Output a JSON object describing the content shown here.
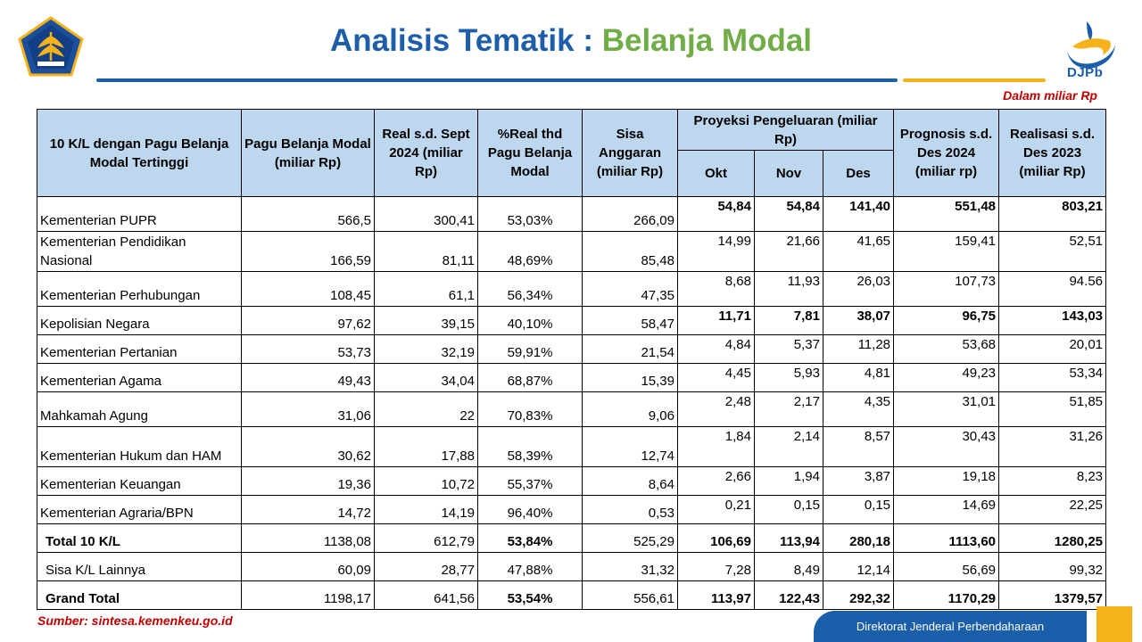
{
  "header": {
    "title_part1": "Analisis Tematik : ",
    "title_part2": "Belanja Modal",
    "logo_right_text": "DJPb",
    "unit_note": "Dalam miliar Rp"
  },
  "table": {
    "headers": {
      "kl": "10 K/L dengan Pagu Belanja Modal Tertinggi",
      "pagu": "Pagu Belanja Modal (miliar Rp)",
      "real": "Real s.d. Sept 2024 (miliar Rp)",
      "pct": "%Real thd Pagu Belanja Modal",
      "sisa": "Sisa Anggaran (miliar Rp)",
      "proyeksi": "Proyeksi Pengeluaran (miliar Rp)",
      "okt": "Okt",
      "nov": "Nov",
      "des": "Des",
      "prognosis": "Prognosis s.d. Des 2024 (miliar rp)",
      "realisasi": "Realisasi s.d. Des 2023 (miliar Rp)"
    },
    "rows": [
      {
        "name": "Kementerian PUPR",
        "pagu": "566,5",
        "real": "300,41",
        "pct": "53,03%",
        "sisa": "266,09",
        "okt": "54,84",
        "nov": "54,84",
        "des": "141,40",
        "prognosis": "551,48",
        "realisasi": "803,21"
      },
      {
        "name": "Kementerian Pendidikan Nasional",
        "pagu": "166,59",
        "real": "81,11",
        "pct": "48,69%",
        "sisa": "85,48",
        "okt": "14,99",
        "nov": "21,66",
        "des": "41,65",
        "prognosis": "159,41",
        "realisasi": "52,51"
      },
      {
        "name": "Kementerian Perhubungan",
        "pagu": "108,45",
        "real": "61,1",
        "pct": "56,34%",
        "sisa": "47,35",
        "okt": "8,68",
        "nov": "11,93",
        "des": "26,03",
        "prognosis": "107,73",
        "realisasi": "94.56"
      },
      {
        "name": "Kepolisian Negara",
        "pagu": "97,62",
        "real": "39,15",
        "pct": "40,10%",
        "sisa": "58,47",
        "okt": "11,71",
        "nov": "7,81",
        "des": "38,07",
        "prognosis": "96,75",
        "realisasi": "143,03"
      },
      {
        "name": "Kementerian Pertanian",
        "pagu": "53,73",
        "real": "32,19",
        "pct": "59,91%",
        "sisa": "21,54",
        "okt": "4,84",
        "nov": "5,37",
        "des": "11,28",
        "prognosis": "53,68",
        "realisasi": "20,01"
      },
      {
        "name": "Kementerian Agama",
        "pagu": "49,43",
        "real": "34,04",
        "pct": "68,87%",
        "sisa": "15,39",
        "okt": "4,45",
        "nov": "5,93",
        "des": "4,81",
        "prognosis": "49,23",
        "realisasi": "53,34"
      },
      {
        "name": "Mahkamah Agung",
        "pagu": "31,06",
        "real": "22",
        "pct": "70,83%",
        "sisa": "9,06",
        "okt": "2,48",
        "nov": "2,17",
        "des": "4,35",
        "prognosis": "31,01",
        "realisasi": "51,85"
      },
      {
        "name": "Kementerian Hukum dan HAM",
        "pagu": "30,62",
        "real": "17,88",
        "pct": "58,39%",
        "sisa": "12,74",
        "okt": "1,84",
        "nov": "2,14",
        "des": "8,57",
        "prognosis": "30,43",
        "realisasi": "31,26"
      },
      {
        "name": "Kementerian Keuangan",
        "pagu": "19,36",
        "real": "10,72",
        "pct": "55,37%",
        "sisa": "8,64",
        "okt": "2,66",
        "nov": "1,94",
        "des": "3,87",
        "prognosis": "19,18",
        "realisasi": "8,23"
      },
      {
        "name": "Kementerian Agraria/BPN",
        "pagu": "14,72",
        "real": "14,19",
        "pct": "96,40%",
        "sisa": "0,53",
        "okt": "0,21",
        "nov": "0,15",
        "des": "0,15",
        "prognosis": "14,69",
        "realisasi": "22,25"
      },
      {
        "name": "Total 10 K/L",
        "pagu": "1138,08",
        "real": "612,79",
        "pct": "53,84%",
        "sisa": "525,29",
        "okt": "106,69",
        "nov": "113,94",
        "des": "280,18",
        "prognosis": "1113,60",
        "realisasi": "1280,25"
      },
      {
        "name": "Sisa K/L Lainnya",
        "pagu": "60,09",
        "real": "28,77",
        "pct": "47,88%",
        "sisa": "31,32",
        "okt": "7,28",
        "nov": "8,49",
        "des": "12,14",
        "prognosis": "56,69",
        "realisasi": "99,32"
      },
      {
        "name": "Grand Total",
        "pagu": "1198,17",
        "real": "641,56",
        "pct": "53,54%",
        "sisa": "556,61",
        "okt": "113,97",
        "nov": "122,43",
        "des": "292,32",
        "prognosis": "1170,29",
        "realisasi": "1379,57"
      }
    ]
  },
  "footer": {
    "source": "Sumber: sintesa.kemenkeu.go.id",
    "org": "Direktorat Jenderal Perbendaharaan"
  },
  "colors": {
    "title_blue": "#1e5ea8",
    "title_green": "#70ad47",
    "header_fill": "#bdd7ee",
    "accent_red": "#c00000",
    "brand_yellow": "#f5b21b"
  },
  "icons": {
    "logo_left": "kemenkeu-emblem-icon",
    "logo_right": "djpb-logo-icon"
  }
}
